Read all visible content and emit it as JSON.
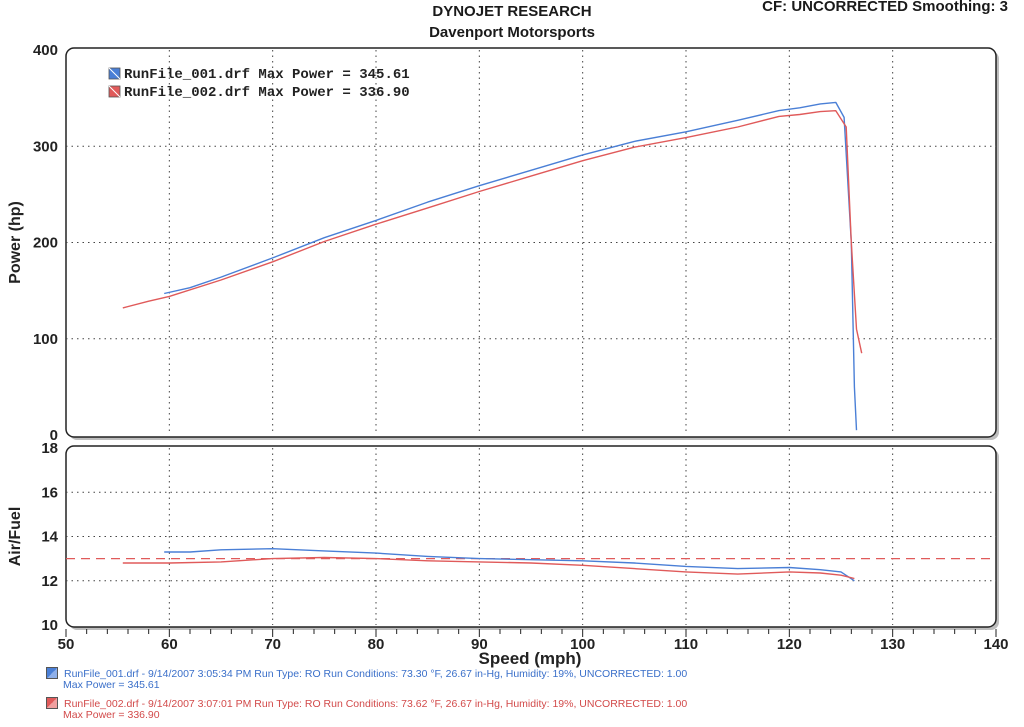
{
  "header": {
    "title": "DYNOJET RESEARCH",
    "subtitle": "Davenport Motorsports",
    "settings": "CF: UNCORRECTED  Smoothing: 3"
  },
  "colors": {
    "run1": "#4a7fd6",
    "run2": "#e05a5a",
    "grid": "#444444"
  },
  "legend": [
    {
      "label": "RunFile_001.drf Max Power = 345.61"
    },
    {
      "label": "RunFile_002.drf Max Power = 336.90"
    }
  ],
  "footer": [
    {
      "line1": "RunFile_001.drf - 9/14/2007 3:05:34 PM  Run Type: RO  Run Conditions: 73.30 °F, 26.67 in-Hg,  Humidity:  19%, UNCORRECTED: 1.00",
      "line2": "Max Power = 345.61"
    },
    {
      "line1": "RunFile_002.drf - 9/14/2007 3:07:01 PM  Run Type: RO  Run Conditions: 73.62 °F, 26.67 in-Hg,  Humidity:  19%, UNCORRECTED: 1.00",
      "line2": "Max Power = 336.90"
    }
  ],
  "chart_data": [
    {
      "type": "line",
      "ylabel": "Power (hp)",
      "xlim": [
        50,
        140
      ],
      "ylim": [
        0,
        400
      ],
      "yticks": [
        0,
        100,
        200,
        300,
        400
      ],
      "grid": true,
      "legend_position": "top-left",
      "series": [
        {
          "name": "RunFile_001.drf",
          "color": "#4a7fd6",
          "x": [
            59.5,
            62,
            65,
            70,
            75,
            80,
            85,
            90,
            95,
            100,
            105,
            110,
            115,
            119,
            121,
            123,
            124.5,
            125.3,
            126,
            126.3,
            126.5
          ],
          "y": [
            147,
            153,
            164,
            184,
            205,
            223,
            242,
            259,
            275,
            291,
            305,
            315,
            327,
            337,
            340,
            344,
            345.6,
            330,
            200,
            50,
            5
          ]
        },
        {
          "name": "RunFile_002.drf",
          "color": "#e05a5a",
          "x": [
            55.5,
            58,
            60,
            65,
            70,
            75,
            80,
            85,
            90,
            95,
            100,
            105,
            110,
            115,
            119,
            121,
            123,
            124.5,
            125.5,
            126,
            126.5,
            127
          ],
          "y": [
            132,
            139,
            144,
            161,
            180,
            201,
            219,
            236,
            253,
            269,
            285,
            299,
            309,
            320,
            331,
            333,
            336,
            336.9,
            320,
            200,
            110,
            85
          ]
        }
      ]
    },
    {
      "type": "line",
      "xlabel": "Speed (mph)",
      "ylabel": "Air/Fuel",
      "xlim": [
        50,
        140
      ],
      "ylim": [
        10,
        18
      ],
      "xticks": [
        50,
        60,
        70,
        80,
        90,
        100,
        110,
        120,
        130,
        140
      ],
      "yticks": [
        10,
        12,
        14,
        16,
        18
      ],
      "grid": true,
      "reference_line": {
        "y": 13.0,
        "style": "dashed",
        "color": "#e05a5a"
      },
      "series": [
        {
          "name": "RunFile_001.drf",
          "color": "#4a7fd6",
          "x": [
            59.5,
            62,
            65,
            70,
            75,
            80,
            85,
            90,
            95,
            100,
            105,
            110,
            115,
            120,
            123,
            125,
            126.3
          ],
          "y": [
            13.3,
            13.3,
            13.4,
            13.45,
            13.35,
            13.25,
            13.1,
            13.0,
            12.95,
            12.9,
            12.8,
            12.65,
            12.55,
            12.6,
            12.5,
            12.4,
            12.0
          ]
        },
        {
          "name": "RunFile_002.drf",
          "color": "#e05a5a",
          "x": [
            55.5,
            60,
            65,
            70,
            75,
            80,
            85,
            90,
            95,
            100,
            105,
            110,
            115,
            120,
            123,
            125,
            126.3
          ],
          "y": [
            12.8,
            12.8,
            12.85,
            13.0,
            13.05,
            13.0,
            12.9,
            12.85,
            12.8,
            12.7,
            12.55,
            12.4,
            12.3,
            12.4,
            12.35,
            12.25,
            12.1
          ]
        }
      ]
    }
  ]
}
